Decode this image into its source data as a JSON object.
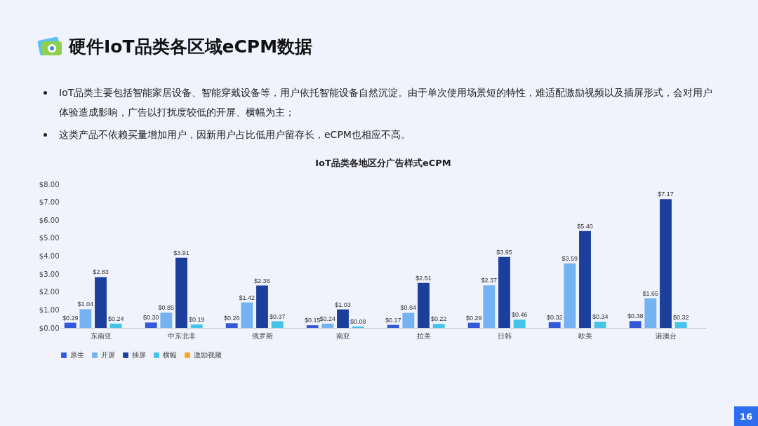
{
  "chart_data": {
    "type": "bar",
    "title": "硬件IoT品类各区域eCPM数据",
    "subtitle": "IoT品类各地区分广告样式eCPM",
    "annotations": [
      "IoT品类主要包括智能家居设备、智能穿戴设备等，用户依托智能设备自然沉淀。由于单次使用场景短的特性，难适配激励视频以及插屏形式，会对用户体验造成影响，广告以打扰度较低的开屏、横幅为主；",
      "这类产品不依赖买量增加用户，因新用户占比低用户留存长，eCPM也相应不高。",
      "16"
    ],
    "categories": [
      "东南亚",
      "中东北非",
      "俄罗斯",
      "南亚",
      "拉美",
      "日韩",
      "欧美",
      "港澳台"
    ],
    "series": [
      {
        "name": "原生",
        "color": "#3358d8",
        "values": [
          0.29,
          0.3,
          0.26,
          0.15,
          0.17,
          0.29,
          0.32,
          0.38
        ],
        "value_labels": [
          "$0.29",
          "$0.30",
          "$0.26",
          "$0.15",
          "$0.17",
          "$0.29",
          "$0.32",
          "$0.38"
        ]
      },
      {
        "name": "开屏",
        "color": "#74b2f2",
        "values": [
          1.04,
          0.85,
          1.42,
          0.24,
          0.84,
          2.37,
          3.59,
          1.65
        ],
        "value_labels": [
          "$1.04",
          "$0.85",
          "$1.42",
          "$0.24",
          "$0.84",
          "$2.37",
          "$3.59",
          "$1.65"
        ]
      },
      {
        "name": "插屏",
        "color": "#1c3f9e",
        "values": [
          2.83,
          3.91,
          2.36,
          1.03,
          2.51,
          3.95,
          5.4,
          7.17
        ],
        "value_labels": [
          "$2.83",
          "$3.91",
          "$2.36",
          "$1.03",
          "$2.51",
          "$3.95",
          "$5.40",
          "$7.17"
        ]
      },
      {
        "name": "横幅",
        "color": "#45c3e8",
        "values": [
          0.24,
          0.19,
          0.37,
          0.08,
          0.22,
          0.46,
          0.34,
          0.32
        ],
        "value_labels": [
          "$0.24",
          "$0.19",
          "$0.37",
          "$0.08",
          "$0.22",
          "$0.46",
          "$0.34",
          "$0.32"
        ]
      },
      {
        "name": "激励视频",
        "color": "#f5a623",
        "values": [
          null,
          null,
          null,
          null,
          null,
          null,
          null,
          null
        ]
      }
    ],
    "ylim": [
      0,
      8
    ],
    "yticks": [
      {
        "value": 0,
        "label": "$0.00"
      },
      {
        "value": 1,
        "label": "$1.00"
      },
      {
        "value": 2,
        "label": "$2.00"
      },
      {
        "value": 3,
        "label": "$3.00"
      },
      {
        "value": 4,
        "label": "$4.00"
      },
      {
        "value": 5,
        "label": "$5.00"
      },
      {
        "value": 6,
        "label": "$6.00"
      },
      {
        "value": 7,
        "label": "$7.00"
      },
      {
        "value": 8,
        "label": "$8.00"
      }
    ],
    "grid": false,
    "legend": "bottom"
  }
}
